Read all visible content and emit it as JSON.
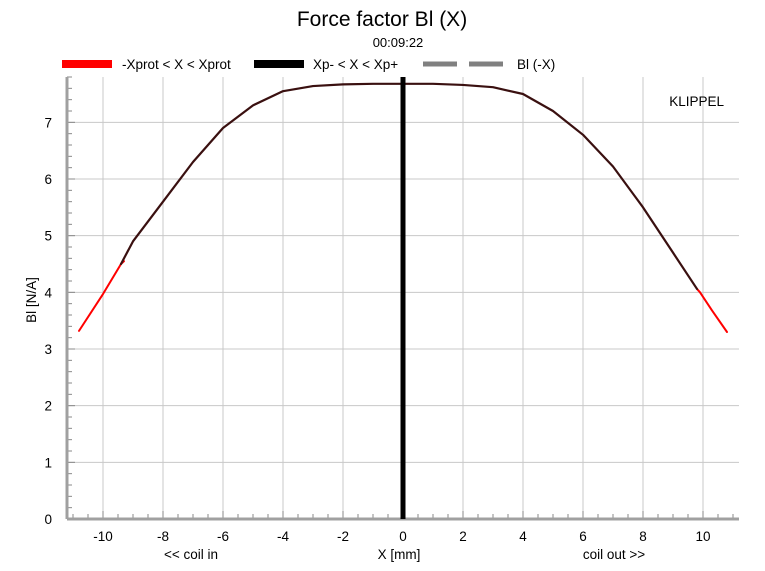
{
  "chart_data": {
    "type": "line",
    "title": "Force factor Bl (X)",
    "subtitle": "00:09:22",
    "xlabel": "X [mm]",
    "xlabel_left": "<< coil in",
    "xlabel_right": "coil out >>",
    "ylabel": "Bl [N/A]",
    "watermark": "KLIPPEL",
    "xlim": [
      -11.2,
      11.2
    ],
    "ylim": [
      0,
      7.8
    ],
    "xticks": [
      -10,
      -8,
      -6,
      -4,
      -2,
      0,
      2,
      4,
      6,
      8,
      10
    ],
    "yticks": [
      0,
      1,
      2,
      3,
      4,
      5,
      6,
      7
    ],
    "grid": true,
    "legend_position": "top",
    "legend": [
      {
        "label": "-Xprot < X < Xprot",
        "color": "#ff0000",
        "style": "solid"
      },
      {
        "label": "Xp- < X < Xp+",
        "color": "#000000",
        "style": "solid"
      },
      {
        "label": "Bl (-X)",
        "color": "#808080",
        "style": "dashed"
      }
    ],
    "vertical_marker": {
      "x": 0,
      "color": "#000000"
    },
    "series": [
      {
        "name": "-Xprot < X < Xprot",
        "color": "#ff0000",
        "x": [
          -10.8,
          -10,
          -9.4,
          -9.3,
          9.8,
          9.9,
          10.3,
          10.8
        ],
        "y": [
          3.32,
          3.97,
          4.5,
          4.55,
          4.06,
          4.0,
          3.68,
          3.3
        ]
      },
      {
        "name": "Xp- < X < Xp+",
        "color": "#3a1010",
        "x": [
          -9.4,
          -9,
          -8,
          -7,
          -6,
          -5,
          -4,
          -3,
          -2,
          -1,
          0,
          1,
          2,
          3,
          4,
          5,
          6,
          7,
          8,
          9,
          9.8
        ],
        "y": [
          4.5,
          4.9,
          5.6,
          6.3,
          6.9,
          7.3,
          7.55,
          7.64,
          7.67,
          7.68,
          7.68,
          7.68,
          7.66,
          7.62,
          7.5,
          7.2,
          6.78,
          6.22,
          5.5,
          4.7,
          4.06
        ]
      }
    ]
  }
}
